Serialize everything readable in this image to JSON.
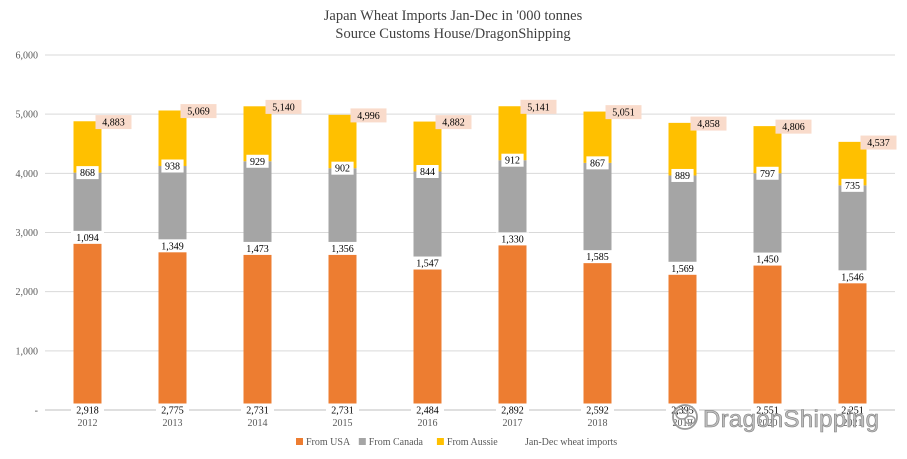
{
  "chart_data": {
    "type": "bar",
    "stacked": true,
    "title": "Japan Wheat Imports Jan-Dec in '000 tonnes",
    "subtitle": "Source Customs House/DragonShipping",
    "xlabel": "",
    "ylabel": "",
    "ylim": [
      0,
      6000
    ],
    "yticks": [
      0,
      1000,
      2000,
      3000,
      4000,
      5000,
      6000
    ],
    "ytick_labels": [
      "-",
      "1,000",
      "2,000",
      "3,000",
      "4,000",
      "5,000",
      "6,000"
    ],
    "grid": true,
    "legend_position": "bottom",
    "categories": [
      "2012",
      "2013",
      "2014",
      "2015",
      "2016",
      "2017",
      "2018",
      "2019",
      "2020",
      "2021"
    ],
    "series": [
      {
        "name": "From USA",
        "color": "#ED7D31",
        "values": [
          2918,
          2775,
          2731,
          2731,
          2484,
          2892,
          2592,
          2395,
          2551,
          2251
        ],
        "labels": [
          "2,918",
          "2,775",
          "2,731",
          "2,731",
          "2,484",
          "2,892",
          "2,592",
          "2,395",
          "2,551",
          "2,251"
        ]
      },
      {
        "name": "From Canada",
        "color": "#A5A5A5",
        "values": [
          1094,
          1349,
          1473,
          1356,
          1547,
          1330,
          1585,
          1569,
          1450,
          1546
        ],
        "labels": [
          "1,094",
          "1,349",
          "1,473",
          "1,356",
          "1,547",
          "1,330",
          "1,585",
          "1,569",
          "1,450",
          "1,546"
        ]
      },
      {
        "name": "From Aussie",
        "color": "#FFC000",
        "values": [
          868,
          938,
          929,
          902,
          844,
          912,
          867,
          889,
          797,
          735
        ],
        "labels": [
          "868",
          "938",
          "929",
          "902",
          "844",
          "912",
          "867",
          "889",
          "797",
          "735"
        ]
      }
    ],
    "totals_series": {
      "name": "Jan-Dec wheat imports",
      "values": [
        4883,
        5069,
        5140,
        4996,
        4882,
        5141,
        5051,
        4858,
        4806,
        4537
      ],
      "labels": [
        "4,883",
        "5,069",
        "5,140",
        "4,996",
        "4,882",
        "5,141",
        "5,051",
        "4,858",
        "4,806",
        "4,537"
      ]
    }
  },
  "watermark": {
    "text": "DragonShipping",
    "icon": "wechat-icon"
  }
}
